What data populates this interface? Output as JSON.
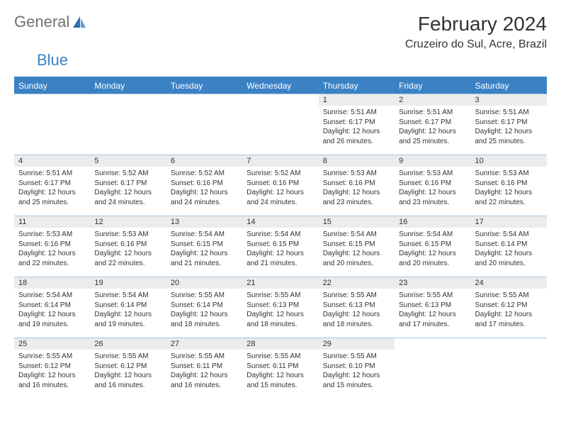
{
  "logo": {
    "text1": "General",
    "text2": "Blue"
  },
  "title": "February 2024",
  "location": "Cruzeiro do Sul, Acre, Brazil",
  "colors": {
    "header_bg": "#3b82c4",
    "header_text": "#ffffff",
    "daynum_bg": "#ececec",
    "border": "#a9c6e0",
    "text": "#333333",
    "logo_gray": "#6f6f6f",
    "logo_blue": "#3b82c4"
  },
  "weekdays": [
    "Sunday",
    "Monday",
    "Tuesday",
    "Wednesday",
    "Thursday",
    "Friday",
    "Saturday"
  ],
  "weeks": [
    [
      null,
      null,
      null,
      null,
      {
        "d": "1",
        "sr": "5:51 AM",
        "ss": "6:17 PM",
        "dl": "12 hours and 26 minutes."
      },
      {
        "d": "2",
        "sr": "5:51 AM",
        "ss": "6:17 PM",
        "dl": "12 hours and 25 minutes."
      },
      {
        "d": "3",
        "sr": "5:51 AM",
        "ss": "6:17 PM",
        "dl": "12 hours and 25 minutes."
      }
    ],
    [
      {
        "d": "4",
        "sr": "5:51 AM",
        "ss": "6:17 PM",
        "dl": "12 hours and 25 minutes."
      },
      {
        "d": "5",
        "sr": "5:52 AM",
        "ss": "6:17 PM",
        "dl": "12 hours and 24 minutes."
      },
      {
        "d": "6",
        "sr": "5:52 AM",
        "ss": "6:16 PM",
        "dl": "12 hours and 24 minutes."
      },
      {
        "d": "7",
        "sr": "5:52 AM",
        "ss": "6:16 PM",
        "dl": "12 hours and 24 minutes."
      },
      {
        "d": "8",
        "sr": "5:53 AM",
        "ss": "6:16 PM",
        "dl": "12 hours and 23 minutes."
      },
      {
        "d": "9",
        "sr": "5:53 AM",
        "ss": "6:16 PM",
        "dl": "12 hours and 23 minutes."
      },
      {
        "d": "10",
        "sr": "5:53 AM",
        "ss": "6:16 PM",
        "dl": "12 hours and 22 minutes."
      }
    ],
    [
      {
        "d": "11",
        "sr": "5:53 AM",
        "ss": "6:16 PM",
        "dl": "12 hours and 22 minutes."
      },
      {
        "d": "12",
        "sr": "5:53 AM",
        "ss": "6:16 PM",
        "dl": "12 hours and 22 minutes."
      },
      {
        "d": "13",
        "sr": "5:54 AM",
        "ss": "6:15 PM",
        "dl": "12 hours and 21 minutes."
      },
      {
        "d": "14",
        "sr": "5:54 AM",
        "ss": "6:15 PM",
        "dl": "12 hours and 21 minutes."
      },
      {
        "d": "15",
        "sr": "5:54 AM",
        "ss": "6:15 PM",
        "dl": "12 hours and 20 minutes."
      },
      {
        "d": "16",
        "sr": "5:54 AM",
        "ss": "6:15 PM",
        "dl": "12 hours and 20 minutes."
      },
      {
        "d": "17",
        "sr": "5:54 AM",
        "ss": "6:14 PM",
        "dl": "12 hours and 20 minutes."
      }
    ],
    [
      {
        "d": "18",
        "sr": "5:54 AM",
        "ss": "6:14 PM",
        "dl": "12 hours and 19 minutes."
      },
      {
        "d": "19",
        "sr": "5:54 AM",
        "ss": "6:14 PM",
        "dl": "12 hours and 19 minutes."
      },
      {
        "d": "20",
        "sr": "5:55 AM",
        "ss": "6:14 PM",
        "dl": "12 hours and 18 minutes."
      },
      {
        "d": "21",
        "sr": "5:55 AM",
        "ss": "6:13 PM",
        "dl": "12 hours and 18 minutes."
      },
      {
        "d": "22",
        "sr": "5:55 AM",
        "ss": "6:13 PM",
        "dl": "12 hours and 18 minutes."
      },
      {
        "d": "23",
        "sr": "5:55 AM",
        "ss": "6:13 PM",
        "dl": "12 hours and 17 minutes."
      },
      {
        "d": "24",
        "sr": "5:55 AM",
        "ss": "6:12 PM",
        "dl": "12 hours and 17 minutes."
      }
    ],
    [
      {
        "d": "25",
        "sr": "5:55 AM",
        "ss": "6:12 PM",
        "dl": "12 hours and 16 minutes."
      },
      {
        "d": "26",
        "sr": "5:55 AM",
        "ss": "6:12 PM",
        "dl": "12 hours and 16 minutes."
      },
      {
        "d": "27",
        "sr": "5:55 AM",
        "ss": "6:11 PM",
        "dl": "12 hours and 16 minutes."
      },
      {
        "d": "28",
        "sr": "5:55 AM",
        "ss": "6:11 PM",
        "dl": "12 hours and 15 minutes."
      },
      {
        "d": "29",
        "sr": "5:55 AM",
        "ss": "6:10 PM",
        "dl": "12 hours and 15 minutes."
      },
      null,
      null
    ]
  ],
  "labels": {
    "sunrise": "Sunrise:",
    "sunset": "Sunset:",
    "daylight": "Daylight:"
  }
}
